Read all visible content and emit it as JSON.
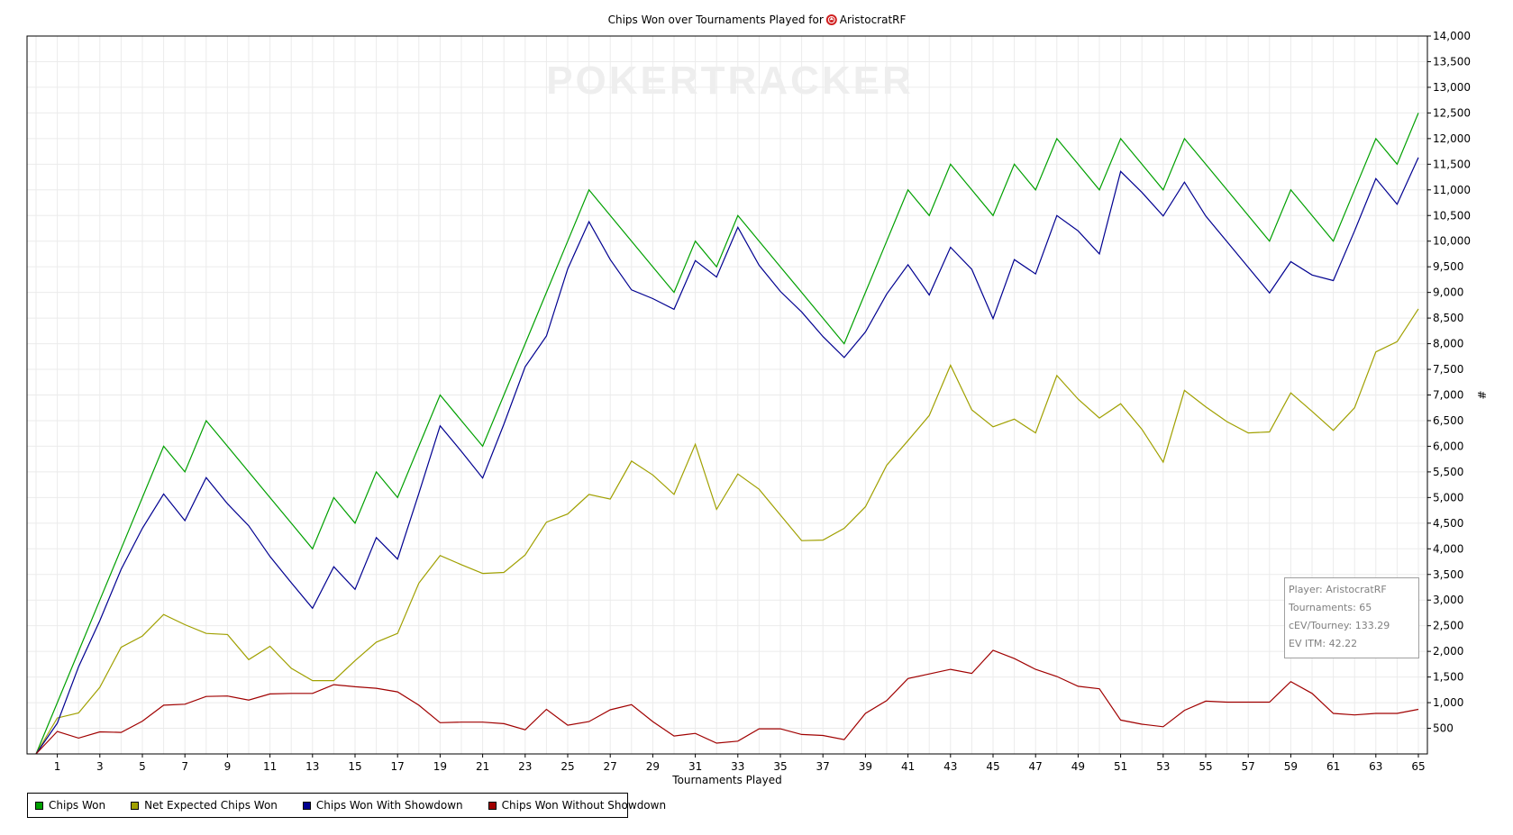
{
  "chart_data": {
    "type": "line",
    "title": "Chips Won over Tournaments Played for",
    "player_name": "AristocratRF",
    "player_icon": "poker-chip-icon",
    "watermark": "POKERTRACKER",
    "xlabel": "Tournaments Played",
    "ylabel": "#",
    "xlim": [
      0,
      65
    ],
    "ylim": [
      0,
      14000
    ],
    "x_ticks": [
      1,
      3,
      5,
      7,
      9,
      11,
      13,
      15,
      17,
      19,
      21,
      23,
      25,
      27,
      29,
      31,
      33,
      35,
      37,
      39,
      41,
      43,
      45,
      47,
      49,
      51,
      53,
      55,
      57,
      59,
      61,
      63,
      65
    ],
    "y_ticks": [
      "500",
      "1,000",
      "1,500",
      "2,000",
      "2,500",
      "3,000",
      "3,500",
      "4,000",
      "4,500",
      "5,000",
      "5,500",
      "6,000",
      "6,500",
      "7,000",
      "7,500",
      "8,000",
      "8,500",
      "9,000",
      "9,500",
      "10,000",
      "10,500",
      "11,000",
      "11,500",
      "12,000",
      "12,500",
      "13,000",
      "13,500",
      "14,000"
    ],
    "y_tick_values": [
      500,
      1000,
      1500,
      2000,
      2500,
      3000,
      3500,
      4000,
      4500,
      5000,
      5500,
      6000,
      6500,
      7000,
      7500,
      8000,
      8500,
      9000,
      9500,
      10000,
      10500,
      11000,
      11500,
      12000,
      12500,
      13000,
      13500,
      14000
    ],
    "grid": true,
    "legend_position": "bottom-left",
    "x": [
      0,
      1,
      2,
      3,
      4,
      5,
      6,
      7,
      8,
      9,
      10,
      11,
      12,
      13,
      14,
      15,
      16,
      17,
      18,
      19,
      20,
      21,
      22,
      23,
      24,
      25,
      26,
      27,
      28,
      29,
      30,
      31,
      32,
      33,
      34,
      35,
      36,
      37,
      38,
      39,
      40,
      41,
      42,
      43,
      44,
      45,
      46,
      47,
      48,
      49,
      50,
      51,
      52,
      53,
      54,
      55,
      56,
      57,
      58,
      59,
      60,
      61,
      62,
      63,
      64,
      65
    ],
    "series": [
      {
        "name": "Chips Won",
        "color": "#00a000",
        "values": [
          0,
          1000,
          2000,
          3000,
          4000,
          5000,
          6000,
          5500,
          6500,
          6000,
          5500,
          5000,
          4500,
          4000,
          5000,
          4500,
          5500,
          5000,
          6000,
          7000,
          6500,
          6000,
          7000,
          8000,
          9000,
          10000,
          11000,
          10500,
          10000,
          9500,
          9000,
          10000,
          9500,
          10500,
          10000,
          9500,
          9000,
          8500,
          8000,
          9000,
          10000,
          11000,
          10500,
          11500,
          11000,
          10500,
          11500,
          11000,
          12000,
          11500,
          11000,
          12000,
          11500,
          11000,
          12000,
          11500,
          11000,
          10500,
          10000,
          11000,
          10500,
          10000,
          11000,
          12000,
          11500,
          12500
        ]
      },
      {
        "name": "Net Expected Chips Won",
        "color": "#a0a000",
        "values": [
          0,
          700,
          800,
          1300,
          2080,
          2300,
          2720,
          2520,
          2350,
          2330,
          1840,
          2100,
          1670,
          1430,
          1430,
          1820,
          2180,
          2350,
          3330,
          3870,
          3690,
          3520,
          3540,
          3880,
          4520,
          4680,
          5060,
          4970,
          5710,
          5440,
          5060,
          6040,
          4770,
          5460,
          5160,
          4660,
          4160,
          4170,
          4400,
          4820,
          5630,
          6110,
          6600,
          7580,
          6710,
          6380,
          6530,
          6260,
          7380,
          6920,
          6550,
          6830,
          6330,
          5690,
          7090,
          6770,
          6480,
          6260,
          6280,
          7040,
          6680,
          6310,
          6750,
          7840,
          8040,
          8680
        ]
      },
      {
        "name": "Chips Won With Showdown",
        "color": "#000090",
        "values": [
          0,
          600,
          1700,
          2600,
          3600,
          4400,
          5070,
          4550,
          5390,
          4880,
          4450,
          3850,
          3340,
          2840,
          3650,
          3210,
          4220,
          3800,
          5080,
          6400,
          5900,
          5380,
          6430,
          7550,
          8150,
          9460,
          10380,
          9640,
          9050,
          8880,
          8670,
          9620,
          9300,
          10270,
          9530,
          9020,
          8620,
          8140,
          7730,
          8230,
          8970,
          9540,
          8950,
          9880,
          9450,
          8490,
          9640,
          9360,
          10500,
          10200,
          9750,
          11360,
          10950,
          10490,
          11150,
          10490,
          9990,
          9490,
          8990,
          9600,
          9340,
          9230,
          10200,
          11220,
          10720,
          11630
        ]
      },
      {
        "name": "Chips Won Without Showdown",
        "color": "#a00000",
        "values": [
          0,
          440,
          310,
          430,
          420,
          640,
          950,
          970,
          1120,
          1130,
          1050,
          1170,
          1180,
          1180,
          1350,
          1310,
          1280,
          1210,
          950,
          610,
          620,
          620,
          590,
          470,
          870,
          560,
          630,
          860,
          960,
          630,
          350,
          400,
          210,
          250,
          490,
          490,
          380,
          360,
          280,
          790,
          1040,
          1470,
          1560,
          1650,
          1570,
          2020,
          1860,
          1650,
          1510,
          1320,
          1270,
          660,
          580,
          530,
          850,
          1030,
          1010,
          1010,
          1010,
          1410,
          1180,
          790,
          760,
          790,
          790,
          870
        ]
      }
    ]
  },
  "info_box": {
    "player": "Player: AristocratRF",
    "tournaments": "Tournaments: 65",
    "cev": "cEV/Tourney: 133.29",
    "ev_itm": "EV ITM: 42.22"
  }
}
